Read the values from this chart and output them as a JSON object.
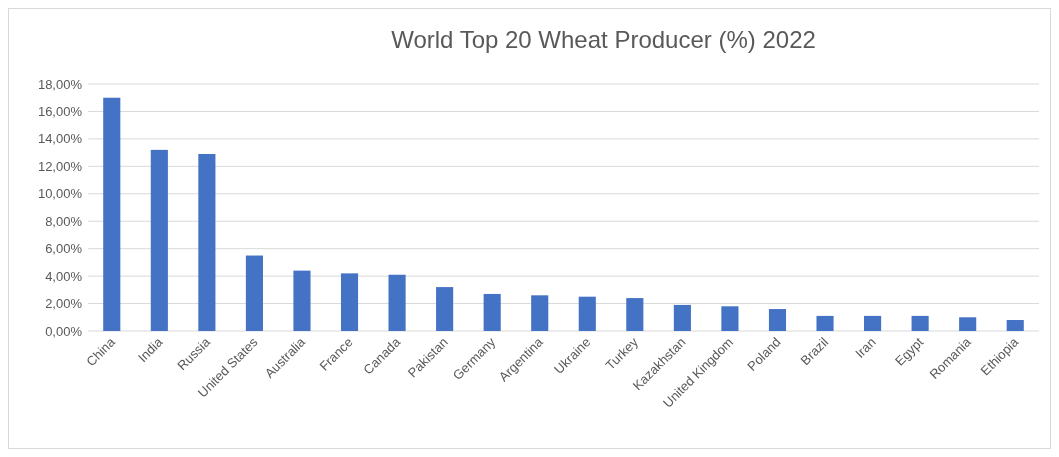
{
  "chart_data": {
    "type": "bar",
    "title": "World Top 20 Wheat Producer (%) 2022",
    "categories": [
      "China",
      "India",
      "Russia",
      "United States",
      "Australia",
      "France",
      "Canada",
      "Pakistan",
      "Germany",
      "Argentina",
      "Ukraine",
      "Turkey",
      "Kazakhstan",
      "United Kingdom",
      "Poland",
      "Brazil",
      "Iran",
      "Egypt",
      "Romania",
      "Ethiopia"
    ],
    "values": [
      17.0,
      13.2,
      12.9,
      5.5,
      4.4,
      4.2,
      4.1,
      3.2,
      2.7,
      2.6,
      2.5,
      2.4,
      1.9,
      1.8,
      1.6,
      1.1,
      1.1,
      1.1,
      1.0,
      0.8
    ],
    "color": "#4472c4",
    "ylim": [
      0,
      18
    ],
    "yticks": [
      {
        "value": 0,
        "label": "0,00%"
      },
      {
        "value": 2,
        "label": "2,00%"
      },
      {
        "value": 4,
        "label": "4,00%"
      },
      {
        "value": 6,
        "label": "6,00%"
      },
      {
        "value": 8,
        "label": "8,00%"
      },
      {
        "value": 10,
        "label": "10,00%"
      },
      {
        "value": 12,
        "label": "12,00%"
      },
      {
        "value": 14,
        "label": "14,00%"
      },
      {
        "value": 16,
        "label": "16,00%"
      },
      {
        "value": 18,
        "label": "18,00%"
      }
    ],
    "grid": true
  }
}
